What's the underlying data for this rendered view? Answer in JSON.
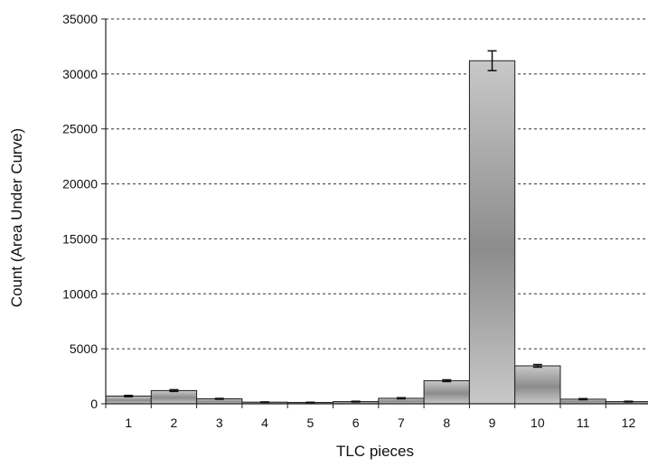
{
  "chart_data": {
    "type": "bar",
    "title": "",
    "xlabel": "TLC pieces",
    "ylabel": "Count (Area Under Curve)",
    "ylim": [
      0,
      35000
    ],
    "yticks": [
      0,
      5000,
      10000,
      15000,
      20000,
      25000,
      30000,
      35000
    ],
    "grid": "horizontal-dashed",
    "legend": "none",
    "categories": [
      "1",
      "2",
      "3",
      "4",
      "5",
      "6",
      "7",
      "8",
      "9",
      "10",
      "11",
      "12"
    ],
    "values": [
      700,
      1200,
      450,
      150,
      120,
      200,
      500,
      2100,
      31200,
      3450,
      420,
      200
    ],
    "errors": [
      60,
      80,
      40,
      20,
      20,
      30,
      50,
      80,
      900,
      120,
      50,
      30
    ],
    "colors": {
      "bar_mid": "#8c8c8c",
      "bar_light": "#c8c8c8",
      "bar_stroke": "#222222",
      "grid": "#333333",
      "axis": "#222222",
      "text": "#111111"
    }
  }
}
